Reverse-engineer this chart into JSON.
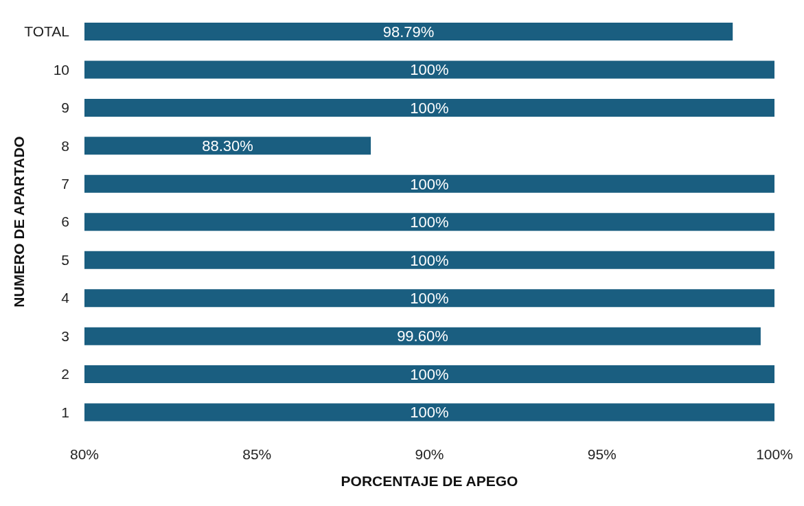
{
  "chart_data": {
    "type": "bar",
    "orientation": "horizontal",
    "xlabel": "PORCENTAJE DE APEGO",
    "ylabel": "NUMERO DE APARTADO",
    "categories": [
      "TOTAL",
      "10",
      "9",
      "8",
      "7",
      "6",
      "5",
      "4",
      "3",
      "2",
      "1"
    ],
    "values": [
      98.79,
      100,
      100,
      88.3,
      100,
      100,
      100,
      100,
      99.6,
      100,
      100
    ],
    "value_labels": [
      "98.79%",
      "100%",
      "100%",
      "88.30%",
      "100%",
      "100%",
      "100%",
      "100%",
      "99.60%",
      "100%",
      "100%"
    ],
    "color": "#1a5e80",
    "xlim": [
      80,
      100
    ],
    "xticks": [
      {
        "value": 80,
        "label": "80%"
      },
      {
        "value": 85,
        "label": "85%"
      },
      {
        "value": 90,
        "label": "90%"
      },
      {
        "value": 95,
        "label": "95%"
      },
      {
        "value": 100,
        "label": "100%"
      }
    ],
    "grid": false
  }
}
